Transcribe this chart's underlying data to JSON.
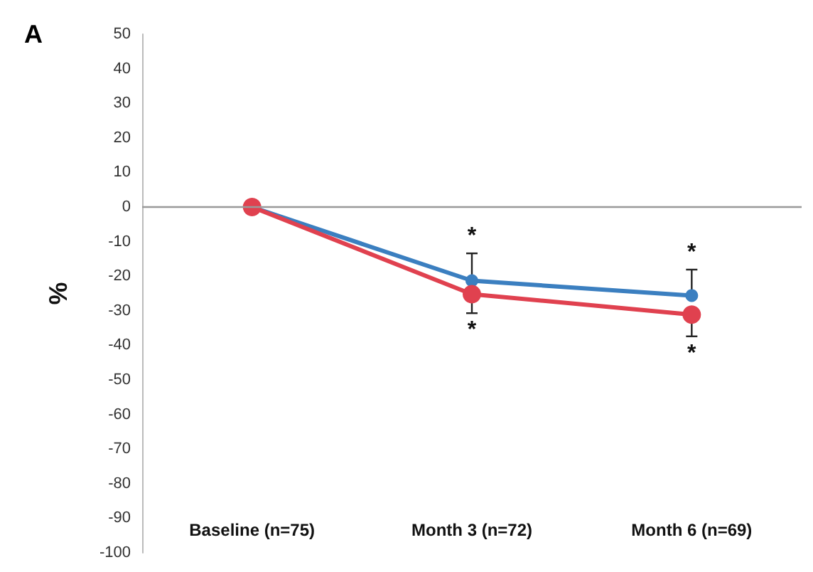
{
  "chart_data": {
    "type": "line",
    "title": "A",
    "ylabel": "%",
    "categories": [
      "Baseline (n=75)",
      "Month 3 (n=72)",
      "Month 6 (n=69)"
    ],
    "series": [
      {
        "color": "#3b7fc0",
        "values": [
          0,
          -21.3,
          -25.6
        ],
        "errors": [
          null,
          [
            -21.3,
            -13.4
          ],
          [
            -25.6,
            -18.1
          ]
        ]
      },
      {
        "color": "#e0414f",
        "values": [
          0,
          -25.2,
          -31.1
        ],
        "errors": [
          null,
          [
            -30.7,
            -25.2
          ],
          [
            -37.4,
            -31.1
          ]
        ]
      }
    ],
    "annotations": [
      {
        "text": "*",
        "x": "Month 3 (n=72)",
        "y": -13.4
      },
      {
        "text": "*",
        "x": "Month 3 (n=72)",
        "y": -30.7
      },
      {
        "text": "*",
        "x": "Month 6 (n=69)",
        "y": -18.1
      },
      {
        "text": "*",
        "x": "Month 6 (n=69)",
        "y": -37.4
      }
    ],
    "ref_lines": [
      {
        "axis": "y",
        "value": 0,
        "color": "#999999"
      }
    ],
    "ylim": [
      -100,
      50
    ],
    "yticks": [
      -100,
      -90,
      -80,
      -70,
      -60,
      -50,
      -40,
      -30,
      -20,
      -10,
      0,
      10,
      20,
      30,
      40,
      50
    ],
    "grid": false,
    "marker": "circle",
    "line_style": "solid"
  }
}
